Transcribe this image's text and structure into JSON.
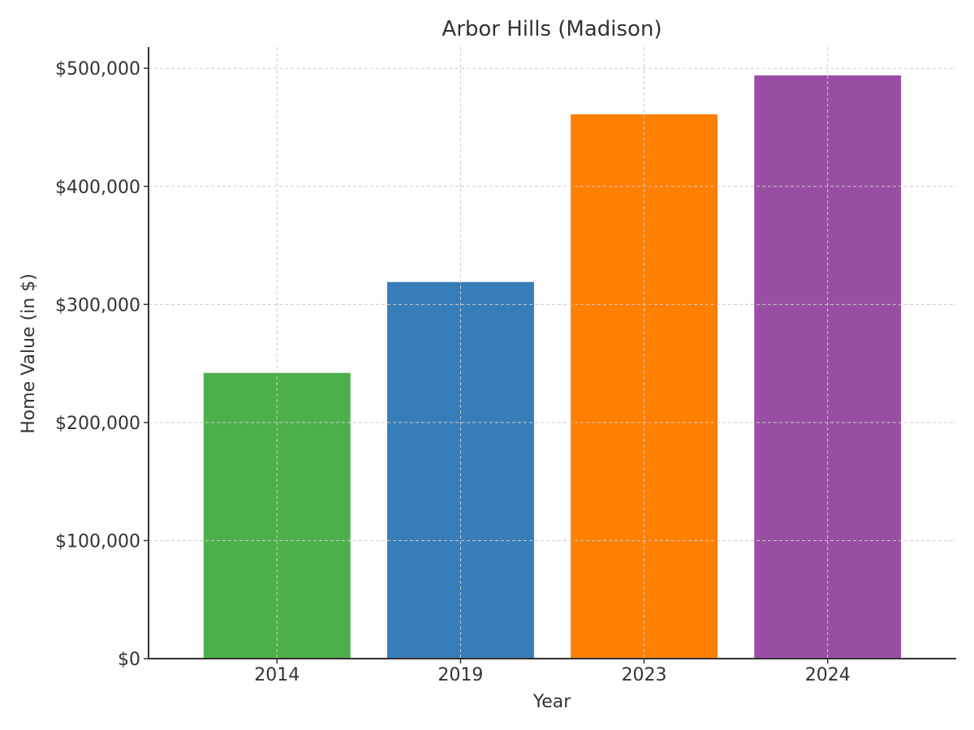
{
  "chart_data": {
    "type": "bar",
    "title": "Arbor Hills (Madison)",
    "xlabel": "Year",
    "ylabel": "Home Value (in $)",
    "categories": [
      "2014",
      "2019",
      "2023",
      "2024"
    ],
    "values": [
      242000,
      319000,
      461000,
      494000
    ],
    "colors": [
      "#4daf4a",
      "#377eb8",
      "#ff7f00",
      "#984ea3"
    ],
    "ylim": [
      0,
      518000
    ],
    "yticks": [
      0,
      100000,
      200000,
      300000,
      400000,
      500000
    ],
    "ytick_labels": [
      "$0",
      "$100,000",
      "$200,000",
      "$300,000",
      "$400,000",
      "$500,000"
    ],
    "grid": true
  }
}
